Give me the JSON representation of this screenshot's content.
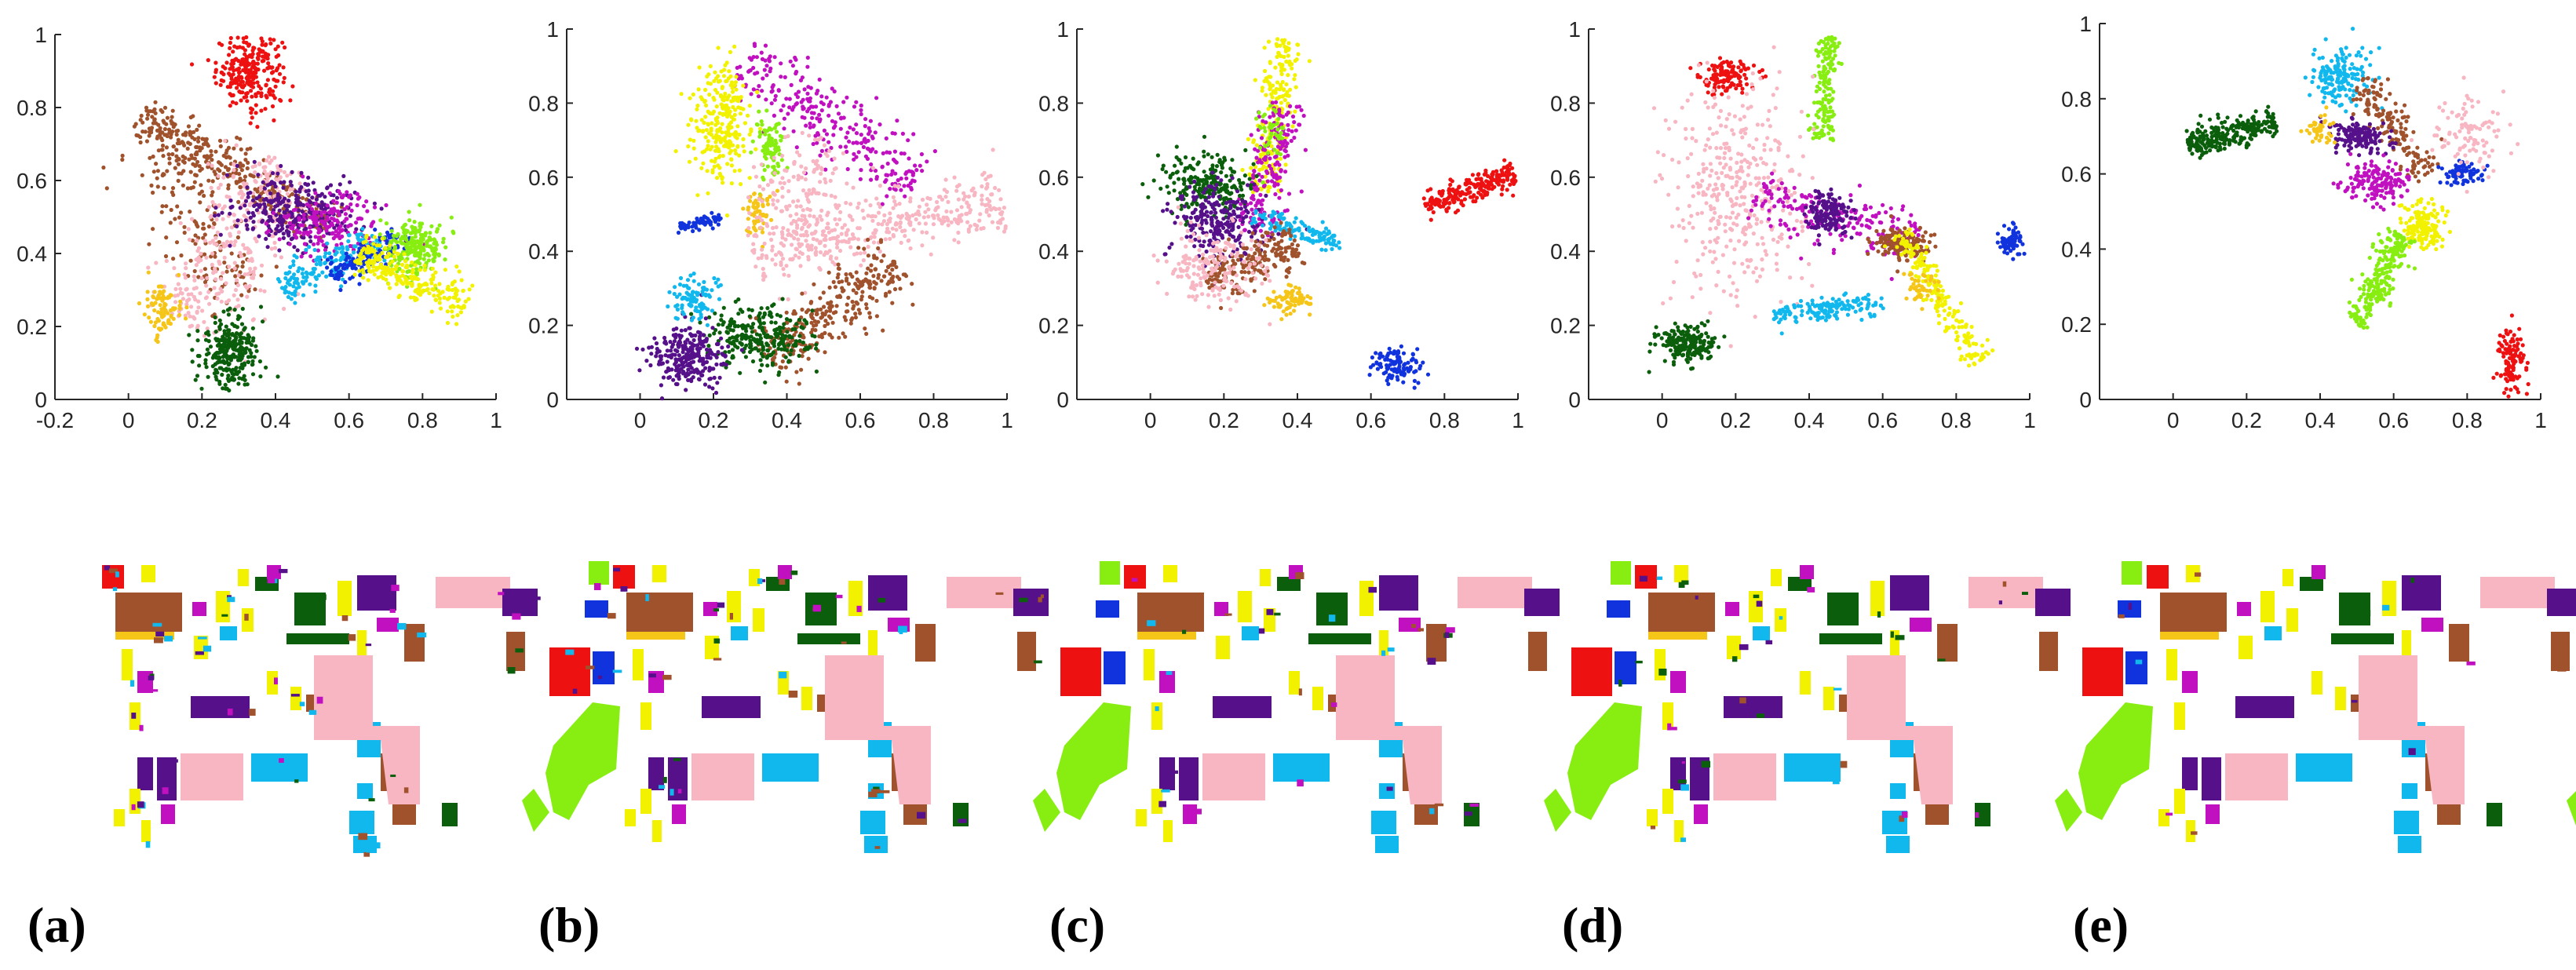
{
  "figure": {
    "panel_labels": [
      "(a)",
      "(b)",
      "(c)",
      "(d)",
      "(e)"
    ]
  },
  "palette": {
    "red": "#ee1111",
    "gold": "#f5c518",
    "yellow": "#f2f200",
    "lime": "#88ee11",
    "cyan": "#11b8ee",
    "blue": "#1133dd",
    "magenta": "#c010c0",
    "indigo": "#55108a",
    "green": "#0b5e0b",
    "brown": "#a0522d",
    "pink": "#f7b6c2"
  },
  "chart_data": [
    {
      "type": "scatter",
      "panel": "(a)",
      "xlim": [
        -0.2,
        1.0
      ],
      "ylim": [
        0,
        1
      ],
      "xticks": [
        "-0.2",
        "0",
        "0.2",
        "0.4",
        "0.6",
        "0.8",
        "1"
      ],
      "yticks": [
        "0",
        "0.2",
        "0.4",
        "0.6",
        "0.8",
        "1"
      ],
      "clusters": [
        {
          "color": "red",
          "n": 260,
          "shape": "g",
          "cx": 0.33,
          "cy": 0.9,
          "sx": 0.045,
          "sy": 0.05
        },
        {
          "color": "brown",
          "n": 340,
          "shape": "l",
          "x1": 0.03,
          "y1": 0.78,
          "x2": 0.55,
          "y2": 0.47,
          "w": 0.03
        },
        {
          "color": "brown",
          "n": 160,
          "shape": "l",
          "x1": 0.05,
          "y1": 0.72,
          "x2": 0.32,
          "y2": 0.28,
          "w": 0.05
        },
        {
          "color": "pink",
          "n": 340,
          "shape": "l",
          "x1": 0.15,
          "y1": 0.2,
          "x2": 0.42,
          "y2": 0.65,
          "w": 0.07
        },
        {
          "color": "indigo",
          "n": 280,
          "shape": "g",
          "cx": 0.45,
          "cy": 0.52,
          "sx": 0.09,
          "sy": 0.05
        },
        {
          "color": "magenta",
          "n": 180,
          "shape": "g",
          "cx": 0.55,
          "cy": 0.48,
          "sx": 0.07,
          "sy": 0.04
        },
        {
          "color": "cyan",
          "n": 180,
          "shape": "l",
          "x1": 0.42,
          "y1": 0.3,
          "x2": 0.68,
          "y2": 0.44,
          "w": 0.03
        },
        {
          "color": "blue",
          "n": 140,
          "shape": "l",
          "x1": 0.55,
          "y1": 0.34,
          "x2": 0.76,
          "y2": 0.46,
          "w": 0.02
        },
        {
          "color": "lime",
          "n": 220,
          "shape": "g",
          "cx": 0.78,
          "cy": 0.42,
          "sx": 0.04,
          "sy": 0.04
        },
        {
          "color": "yellow",
          "n": 240,
          "shape": "l",
          "x1": 0.62,
          "y1": 0.4,
          "x2": 0.92,
          "y2": 0.26,
          "w": 0.03
        },
        {
          "color": "gold",
          "n": 90,
          "shape": "g",
          "cx": 0.09,
          "cy": 0.25,
          "sx": 0.02,
          "sy": 0.04
        },
        {
          "color": "green",
          "n": 280,
          "shape": "g",
          "cx": 0.28,
          "cy": 0.13,
          "sx": 0.04,
          "sy": 0.05
        }
      ]
    },
    {
      "type": "scatter",
      "panel": "(b)",
      "xlim": [
        -0.2,
        1.0
      ],
      "ylim": [
        0,
        1
      ],
      "xticks": [
        "0",
        "0.2",
        "0.4",
        "0.6",
        "0.8",
        "1"
      ],
      "yticks": [
        "0",
        "0.2",
        "0.4",
        "0.6",
        "0.8",
        "1"
      ],
      "clusters": [
        {
          "color": "magenta",
          "n": 280,
          "shape": "l",
          "x1": 0.28,
          "y1": 0.92,
          "x2": 0.75,
          "y2": 0.58,
          "w": 0.05
        },
        {
          "color": "yellow",
          "n": 260,
          "shape": "g",
          "cx": 0.22,
          "cy": 0.75,
          "sx": 0.04,
          "sy": 0.08
        },
        {
          "color": "lime",
          "n": 90,
          "shape": "g",
          "cx": 0.35,
          "cy": 0.68,
          "sx": 0.02,
          "sy": 0.04
        },
        {
          "color": "gold",
          "n": 60,
          "shape": "g",
          "cx": 0.32,
          "cy": 0.5,
          "sx": 0.02,
          "sy": 0.03
        },
        {
          "color": "blue",
          "n": 60,
          "shape": "l",
          "x1": 0.1,
          "y1": 0.46,
          "x2": 0.22,
          "y2": 0.49,
          "w": 0.008
        },
        {
          "color": "pink",
          "n": 400,
          "shape": "l",
          "x1": 0.3,
          "y1": 0.4,
          "x2": 0.99,
          "y2": 0.53,
          "w": 0.04
        },
        {
          "color": "pink",
          "n": 150,
          "shape": "g",
          "cx": 0.45,
          "cy": 0.55,
          "sx": 0.08,
          "sy": 0.08
        },
        {
          "color": "brown",
          "n": 300,
          "shape": "l",
          "x1": 0.35,
          "y1": 0.1,
          "x2": 0.7,
          "y2": 0.38,
          "w": 0.04
        },
        {
          "color": "green",
          "n": 260,
          "shape": "g",
          "cx": 0.32,
          "cy": 0.17,
          "sx": 0.07,
          "sy": 0.04
        },
        {
          "color": "indigo",
          "n": 260,
          "shape": "g",
          "cx": 0.13,
          "cy": 0.12,
          "sx": 0.05,
          "sy": 0.04
        },
        {
          "color": "cyan",
          "n": 90,
          "shape": "g",
          "cx": 0.15,
          "cy": 0.28,
          "sx": 0.03,
          "sy": 0.03
        }
      ]
    },
    {
      "type": "scatter",
      "panel": "(c)",
      "xlim": [
        -0.2,
        1.0
      ],
      "ylim": [
        0,
        1
      ],
      "xticks": [
        "0",
        "0.2",
        "0.4",
        "0.6",
        "0.8",
        "1"
      ],
      "yticks": [
        "0",
        "0.2",
        "0.4",
        "0.6",
        "0.8",
        "1"
      ],
      "clusters": [
        {
          "color": "yellow",
          "n": 220,
          "shape": "l",
          "x1": 0.3,
          "y1": 0.55,
          "x2": 0.37,
          "y2": 0.97,
          "w": 0.025
        },
        {
          "color": "magenta",
          "n": 200,
          "shape": "l",
          "x1": 0.28,
          "y1": 0.45,
          "x2": 0.37,
          "y2": 0.8,
          "w": 0.03
        },
        {
          "color": "green",
          "n": 220,
          "shape": "g",
          "cx": 0.15,
          "cy": 0.58,
          "sx": 0.06,
          "sy": 0.04
        },
        {
          "color": "indigo",
          "n": 240,
          "shape": "g",
          "cx": 0.18,
          "cy": 0.48,
          "sx": 0.06,
          "sy": 0.05
        },
        {
          "color": "cyan",
          "n": 120,
          "shape": "l",
          "x1": 0.28,
          "y1": 0.5,
          "x2": 0.52,
          "y2": 0.42,
          "w": 0.015
        },
        {
          "color": "brown",
          "n": 200,
          "shape": "l",
          "x1": 0.15,
          "y1": 0.32,
          "x2": 0.4,
          "y2": 0.42,
          "w": 0.03
        },
        {
          "color": "pink",
          "n": 180,
          "shape": "g",
          "cx": 0.17,
          "cy": 0.36,
          "sx": 0.07,
          "sy": 0.05
        },
        {
          "color": "gold",
          "n": 70,
          "shape": "g",
          "cx": 0.38,
          "cy": 0.27,
          "sx": 0.03,
          "sy": 0.02
        },
        {
          "color": "red",
          "n": 220,
          "shape": "l",
          "x1": 0.75,
          "y1": 0.52,
          "x2": 0.99,
          "y2": 0.61,
          "w": 0.02
        },
        {
          "color": "blue",
          "n": 100,
          "shape": "g",
          "cx": 0.67,
          "cy": 0.09,
          "sx": 0.03,
          "sy": 0.025
        },
        {
          "color": "lime",
          "n": 40,
          "shape": "g",
          "cx": 0.33,
          "cy": 0.72,
          "sx": 0.02,
          "sy": 0.04
        }
      ]
    },
    {
      "type": "scatter",
      "panel": "(d)",
      "xlim": [
        -0.2,
        1.0
      ],
      "ylim": [
        0,
        1
      ],
      "xticks": [
        "0",
        "0.2",
        "0.4",
        "0.6",
        "0.8",
        "1"
      ],
      "yticks": [
        "0",
        "0.2",
        "0.4",
        "0.6",
        "0.8",
        "1"
      ],
      "clusters": [
        {
          "color": "red",
          "n": 120,
          "shape": "g",
          "cx": 0.17,
          "cy": 0.87,
          "sx": 0.04,
          "sy": 0.025
        },
        {
          "color": "lime",
          "n": 160,
          "shape": "l",
          "x1": 0.43,
          "y1": 0.7,
          "x2": 0.46,
          "y2": 0.98,
          "w": 0.015
        },
        {
          "color": "pink",
          "n": 380,
          "shape": "g",
          "cx": 0.2,
          "cy": 0.55,
          "sx": 0.09,
          "sy": 0.15
        },
        {
          "color": "magenta",
          "n": 200,
          "shape": "l",
          "x1": 0.25,
          "y1": 0.55,
          "x2": 0.7,
          "y2": 0.42,
          "w": 0.04
        },
        {
          "color": "indigo",
          "n": 150,
          "shape": "g",
          "cx": 0.45,
          "cy": 0.5,
          "sx": 0.03,
          "sy": 0.03
        },
        {
          "color": "brown",
          "n": 150,
          "shape": "g",
          "cx": 0.65,
          "cy": 0.42,
          "sx": 0.04,
          "sy": 0.02
        },
        {
          "color": "yellow",
          "n": 200,
          "shape": "l",
          "x1": 0.65,
          "y1": 0.45,
          "x2": 0.86,
          "y2": 0.1,
          "w": 0.02
        },
        {
          "color": "green",
          "n": 200,
          "shape": "g",
          "cx": 0.07,
          "cy": 0.15,
          "sx": 0.04,
          "sy": 0.025
        },
        {
          "color": "cyan",
          "n": 150,
          "shape": "l",
          "x1": 0.3,
          "y1": 0.23,
          "x2": 0.6,
          "y2": 0.26,
          "w": 0.015
        },
        {
          "color": "blue",
          "n": 70,
          "shape": "g",
          "cx": 0.95,
          "cy": 0.43,
          "sx": 0.015,
          "sy": 0.02
        },
        {
          "color": "gold",
          "n": 40,
          "shape": "g",
          "cx": 0.7,
          "cy": 0.3,
          "sx": 0.02,
          "sy": 0.02
        }
      ]
    },
    {
      "type": "scatter",
      "panel": "(e)",
      "xlim": [
        -0.2,
        1.0
      ],
      "ylim": [
        0,
        1
      ],
      "xticks": [
        "0",
        "0.2",
        "0.4",
        "0.6",
        "0.8",
        "1"
      ],
      "yticks": [
        "0",
        "0.2",
        "0.4",
        "0.6",
        "0.8",
        "1"
      ],
      "clusters": [
        {
          "color": "green",
          "n": 260,
          "shape": "l",
          "x1": 0.04,
          "y1": 0.68,
          "x2": 0.28,
          "y2": 0.74,
          "w": 0.02
        },
        {
          "color": "cyan",
          "n": 160,
          "shape": "g",
          "cx": 0.45,
          "cy": 0.86,
          "sx": 0.04,
          "sy": 0.04
        },
        {
          "color": "brown",
          "n": 160,
          "shape": "l",
          "x1": 0.5,
          "y1": 0.85,
          "x2": 0.7,
          "y2": 0.6,
          "w": 0.025
        },
        {
          "color": "indigo",
          "n": 150,
          "shape": "g",
          "cx": 0.5,
          "cy": 0.7,
          "sx": 0.04,
          "sy": 0.02
        },
        {
          "color": "magenta",
          "n": 160,
          "shape": "g",
          "cx": 0.55,
          "cy": 0.58,
          "sx": 0.04,
          "sy": 0.03
        },
        {
          "color": "yellow",
          "n": 160,
          "shape": "g",
          "cx": 0.68,
          "cy": 0.46,
          "sx": 0.03,
          "sy": 0.03
        },
        {
          "color": "lime",
          "n": 240,
          "shape": "l",
          "x1": 0.5,
          "y1": 0.2,
          "x2": 0.62,
          "y2": 0.44,
          "w": 0.02
        },
        {
          "color": "blue",
          "n": 80,
          "shape": "g",
          "cx": 0.78,
          "cy": 0.6,
          "sx": 0.03,
          "sy": 0.015
        },
        {
          "color": "pink",
          "n": 100,
          "shape": "g",
          "cx": 0.8,
          "cy": 0.7,
          "sx": 0.05,
          "sy": 0.05
        },
        {
          "color": "red",
          "n": 110,
          "shape": "g",
          "cx": 0.92,
          "cy": 0.1,
          "sx": 0.02,
          "sy": 0.04
        },
        {
          "color": "gold",
          "n": 40,
          "shape": "g",
          "cx": 0.4,
          "cy": 0.72,
          "sx": 0.02,
          "sy": 0.02
        }
      ]
    }
  ],
  "classification_maps": [
    {
      "panel": "(a)"
    },
    {
      "panel": "(b)"
    },
    {
      "panel": "(c)"
    },
    {
      "panel": "(d)"
    },
    {
      "panel": "(e)"
    }
  ]
}
